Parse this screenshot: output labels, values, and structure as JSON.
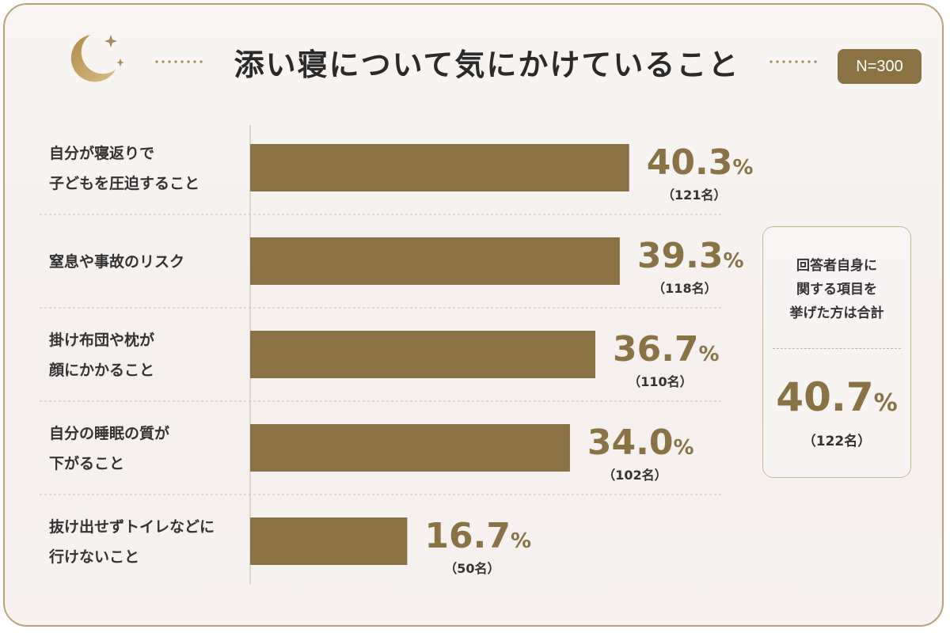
{
  "header": {
    "title": "添い寝について気にかけていること",
    "sample_badge": "N=300"
  },
  "chart_data": {
    "type": "bar",
    "orientation": "horizontal",
    "title": "添い寝について気にかけていること",
    "unit": "%",
    "xlim": [
      0,
      50
    ],
    "categories": [
      [
        "自分が寝返りで",
        "子どもを圧迫すること"
      ],
      [
        "窒息や事故のリスク"
      ],
      [
        "掛け布団や枕が",
        "顔にかかること"
      ],
      [
        "自分の睡眠の質が",
        "下がること"
      ],
      [
        "抜け出せずトイレなどに",
        "行けないこと"
      ]
    ],
    "values": [
      40.3,
      39.3,
      36.7,
      34.0,
      16.7
    ],
    "value_labels": [
      "40.3",
      "39.3",
      "36.7",
      "34.0",
      "16.7"
    ],
    "counts": [
      "（121名）",
      "（118名）",
      "（110名）",
      "（102名）",
      "（50名）"
    ],
    "bar_color": "#8a7244",
    "grid": false
  },
  "summary": {
    "lines": [
      "回答者自身に",
      "関する項目を",
      "挙げた方は合計"
    ],
    "value": "40.7",
    "unit": "%",
    "count": "（122名）"
  },
  "colors": {
    "accent": "#8a7244",
    "border": "#b9a27a"
  }
}
